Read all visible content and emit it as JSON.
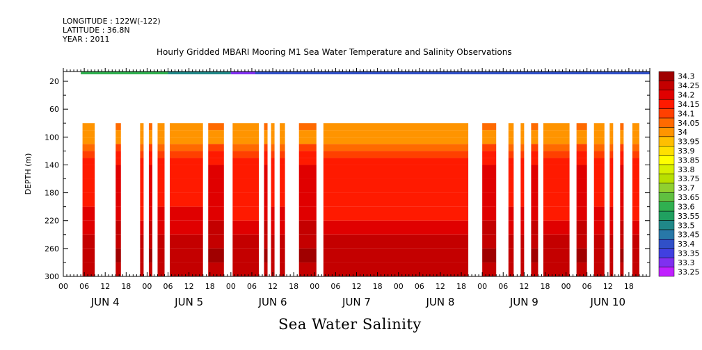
{
  "meta": {
    "longitude": "LONGITUDE : 122W(-122)",
    "latitude": "LATITUDE : 36.8N",
    "year": "YEAR : 2011"
  },
  "chart_data": {
    "type": "heatmap",
    "title": "Hourly Gridded MBARI Mooring M1 Sea Water Temperature and Salinity Observations",
    "xlabel": "Sea Water Salinity",
    "ylabel": "DEPTH (m)",
    "ylim": [
      300,
      6
    ],
    "xlim_hours": [
      0,
      168
    ],
    "y_ticks": [
      20,
      60,
      100,
      140,
      180,
      220,
      260,
      300
    ],
    "y_tick_labels": [
      "20",
      "60",
      "100",
      "140",
      "180",
      "220",
      "260",
      "300"
    ],
    "hour_tick_labels": [
      "00",
      "06",
      "12",
      "18",
      "00",
      "06",
      "12",
      "18",
      "00",
      "06",
      "12",
      "18",
      "00",
      "06",
      "12",
      "18",
      "00",
      "06",
      "12",
      "18",
      "00",
      "06",
      "12",
      "18",
      "00",
      "06",
      "12",
      "18"
    ],
    "day_labels": [
      "JUN  4",
      "JUN  5",
      "JUN  6",
      "JUN  7",
      "JUN  8",
      "JUN  9",
      "JUN 10"
    ],
    "colorbar": {
      "levels": [
        "34.3",
        "34.25",
        "34.2",
        "34.15",
        "34.1",
        "34.05",
        "34",
        "33.95",
        "33.9",
        "33.85",
        "33.8",
        "33.75",
        "33.7",
        "33.65",
        "33.6",
        "33.55",
        "33.5",
        "33.45",
        "33.4",
        "33.35",
        "33.3",
        "33.25"
      ],
      "colors": [
        "#a00000",
        "#c40000",
        "#e00000",
        "#ff1a00",
        "#ff4000",
        "#ff6a00",
        "#ff9400",
        "#ffbf00",
        "#ffe000",
        "#ffff00",
        "#d8f000",
        "#b8e000",
        "#90d030",
        "#60c040",
        "#30b050",
        "#20a060",
        "#208888",
        "#2878a8",
        "#3050c8",
        "#4040e0",
        "#8030f0",
        "#c020ff"
      ]
    },
    "surface_band": {
      "depth": 10,
      "segments": [
        {
          "start": 5,
          "end": 30,
          "value": 33.6
        },
        {
          "start": 30,
          "end": 48,
          "value": 33.5
        },
        {
          "start": 48,
          "end": 55,
          "value": 33.3
        },
        {
          "start": 55,
          "end": 168,
          "value": 33.4
        }
      ]
    },
    "salinity_profile": {
      "depths": [
        80,
        90,
        100,
        110,
        120,
        130,
        140,
        160,
        180,
        200,
        220,
        240,
        260,
        280,
        300
      ],
      "values": [
        34.0,
        33.98,
        33.98,
        34.05,
        34.1,
        34.12,
        34.15,
        34.15,
        34.15,
        34.16,
        34.2,
        34.23,
        34.25,
        34.23,
        34.2
      ]
    },
    "data_segments": [
      [
        5.5,
        9.0
      ],
      [
        15.0,
        16.5
      ],
      [
        22.0,
        23.0
      ],
      [
        24.5,
        25.5
      ],
      [
        27.0,
        29.0
      ],
      [
        30.5,
        40.0
      ],
      [
        41.5,
        46.0
      ],
      [
        48.5,
        56.0
      ],
      [
        57.5,
        58.5
      ],
      [
        59.5,
        60.5
      ],
      [
        62.0,
        63.5
      ],
      [
        67.5,
        72.5
      ],
      [
        74.5,
        116.0
      ],
      [
        120.0,
        124.0
      ],
      [
        127.5,
        129.0
      ],
      [
        131.0,
        132.0
      ],
      [
        134.0,
        136.0
      ],
      [
        137.5,
        145.0
      ],
      [
        147.0,
        150.0
      ],
      [
        152.0,
        155.0
      ],
      [
        156.5,
        157.5
      ],
      [
        159.5,
        160.5
      ],
      [
        163.0,
        165.0
      ]
    ]
  }
}
